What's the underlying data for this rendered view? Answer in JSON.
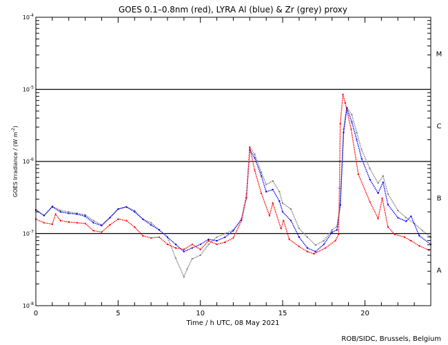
{
  "chart_data": {
    "type": "scatter",
    "title": "GOES 0.1–0.8nm (red), LYRA Al (blue) & Zr (grey) proxy",
    "xlabel": "Time / h UTC, 08 May 2021",
    "ylabel": "GOES Irradiance / (W m",
    "ylabel_sup": "-2",
    "ylabel_end": ")",
    "xlim": [
      0,
      24
    ],
    "ylim_log10": [
      -8,
      -4
    ],
    "yscale": "log",
    "x_ticks": [
      "0",
      "5",
      "10",
      "15",
      "20"
    ],
    "y_ticks": [
      {
        "base": "10",
        "exp": "-4",
        "log": -4
      },
      {
        "base": "10",
        "exp": "-5",
        "log": -5
      },
      {
        "base": "10",
        "exp": "-6",
        "log": -6
      },
      {
        "base": "10",
        "exp": "-7",
        "log": -7
      },
      {
        "base": "10",
        "exp": "-8",
        "log": -8
      }
    ],
    "flare_classes": [
      {
        "label": "A",
        "log": -7.5
      },
      {
        "label": "B",
        "log": -6.5
      },
      {
        "label": "C",
        "log": -5.5
      },
      {
        "label": "M",
        "log": -4.5
      }
    ],
    "reference_lines_log10": [
      -5,
      -6,
      -7
    ],
    "series": [
      {
        "name": "LYRA Zr proxy",
        "color": "#808080",
        "x": [
          0,
          0.5,
          1,
          1.5,
          2,
          2.5,
          3,
          3.5,
          4,
          4.5,
          5,
          5.5,
          6,
          6.5,
          7,
          7.5,
          8,
          8.5,
          9,
          9.2,
          9.5,
          10,
          10.5,
          11,
          11.5,
          12,
          12.5,
          12.8,
          13,
          13.3,
          13.7,
          14,
          14.4,
          14.8,
          15,
          15.5,
          16,
          16.5,
          17,
          17.5,
          18,
          18.3,
          18.5,
          18.7,
          18.9,
          19.2,
          19.5,
          19.8,
          20.3,
          20.8,
          21.1,
          21.4,
          22,
          22.5,
          23,
          23.5,
          24
        ],
        "log10": [
          -6.68,
          -6.75,
          -6.62,
          -6.68,
          -6.7,
          -6.72,
          -6.74,
          -6.82,
          -6.88,
          -6.78,
          -6.66,
          -6.63,
          -6.68,
          -6.8,
          -6.85,
          -6.95,
          -7.05,
          -7.34,
          -7.6,
          -7.49,
          -7.35,
          -7.3,
          -7.15,
          -7.05,
          -7.0,
          -6.95,
          -6.8,
          -6.45,
          -5.8,
          -5.9,
          -6.15,
          -6.32,
          -6.27,
          -6.42,
          -6.58,
          -6.66,
          -6.93,
          -7.05,
          -7.16,
          -7.1,
          -6.95,
          -6.9,
          -6.6,
          -5.55,
          -5.25,
          -5.35,
          -5.6,
          -5.84,
          -6.1,
          -6.3,
          -6.2,
          -6.45,
          -6.68,
          -6.78,
          -6.86,
          -6.96,
          -7.05
        ]
      },
      {
        "name": "LYRA Al proxy",
        "color": "#0000ff",
        "x": [
          0,
          0.5,
          1,
          1.5,
          2,
          2.5,
          3,
          3.5,
          4,
          4.5,
          5,
          5.5,
          6,
          6.5,
          7,
          7.5,
          8,
          8.5,
          9,
          9.5,
          10,
          10.5,
          11,
          11.5,
          12,
          12.5,
          12.8,
          13,
          13.3,
          13.7,
          14,
          14.4,
          14.8,
          15,
          15.5,
          16,
          16.5,
          17,
          17.5,
          18,
          18.3,
          18.5,
          18.7,
          18.9,
          19.2,
          19.5,
          19.8,
          20.3,
          20.8,
          21.1,
          21.4,
          22,
          22.5,
          22.8,
          23.3,
          24
        ],
        "log10": [
          -6.67,
          -6.75,
          -6.63,
          -6.7,
          -6.72,
          -6.73,
          -6.76,
          -6.85,
          -6.89,
          -6.78,
          -6.66,
          -6.63,
          -6.7,
          -6.8,
          -6.88,
          -6.95,
          -7.05,
          -7.15,
          -7.25,
          -7.2,
          -7.15,
          -7.08,
          -7.1,
          -7.05,
          -6.96,
          -6.8,
          -6.5,
          -5.84,
          -5.95,
          -6.2,
          -6.42,
          -6.39,
          -6.55,
          -6.7,
          -6.82,
          -7.05,
          -7.2,
          -7.25,
          -7.15,
          -6.98,
          -6.95,
          -6.6,
          -5.6,
          -5.26,
          -5.45,
          -5.7,
          -5.96,
          -6.25,
          -6.44,
          -6.29,
          -6.6,
          -6.78,
          -6.83,
          -6.76,
          -7.03,
          -7.15
        ]
      },
      {
        "name": "GOES 0.1-0.8nm",
        "color": "#ff0000",
        "x": [
          0,
          0.5,
          1,
          1.2,
          1.5,
          2,
          2.5,
          3,
          3.5,
          4,
          4.5,
          5,
          5.5,
          6,
          6.5,
          7,
          7.5,
          8,
          8.5,
          9,
          9.5,
          10,
          10.5,
          11,
          11.5,
          12,
          12.5,
          12.8,
          13,
          13.3,
          13.7,
          14.2,
          14.4,
          14.9,
          15.05,
          15.4,
          16,
          16.5,
          16.9,
          17.6,
          18.2,
          18.4,
          18.45,
          18.5,
          18.66,
          18.8,
          19.16,
          19.6,
          20.3,
          20.8,
          21.05,
          21.4,
          21.8,
          22.4,
          22.8,
          23.3,
          23.9
        ],
        "log10": [
          -6.8,
          -6.85,
          -6.87,
          -6.73,
          -6.82,
          -6.84,
          -6.85,
          -6.86,
          -6.96,
          -6.98,
          -6.88,
          -6.8,
          -6.82,
          -6.91,
          -7.03,
          -7.06,
          -7.05,
          -7.15,
          -7.2,
          -7.22,
          -7.15,
          -7.22,
          -7.1,
          -7.15,
          -7.12,
          -7.06,
          -6.82,
          -6.5,
          -5.81,
          -6.12,
          -6.44,
          -6.75,
          -6.58,
          -6.93,
          -6.82,
          -7.08,
          -7.18,
          -7.25,
          -7.28,
          -7.2,
          -7.1,
          -7.01,
          -6.37,
          -5.48,
          -5.07,
          -5.19,
          -5.55,
          -6.18,
          -6.56,
          -6.79,
          -6.51,
          -6.91,
          -7.01,
          -7.05,
          -7.1,
          -7.17,
          -7.23
        ]
      }
    ]
  },
  "credit": "ROB/SIDC, Brussels, Belgium"
}
